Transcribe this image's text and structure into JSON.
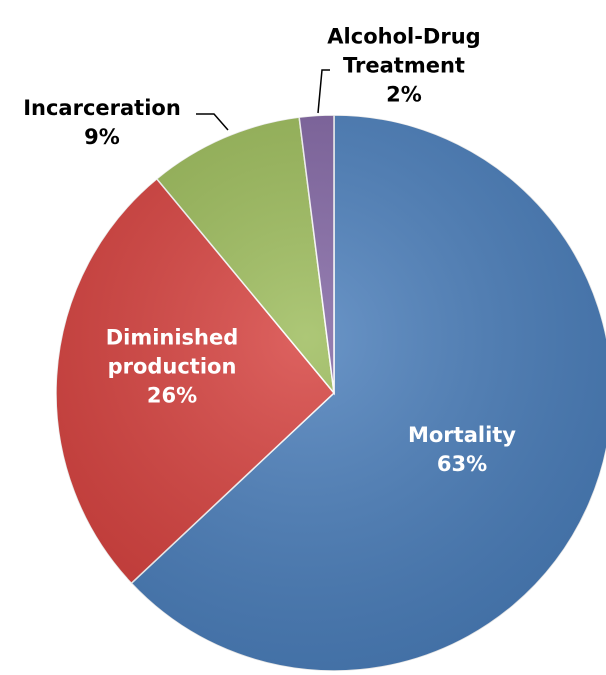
{
  "chart_data": {
    "type": "pie",
    "categories": [
      "Mortality",
      "Diminished production",
      "Incarceration",
      "Alcohol-Drug Treatment"
    ],
    "values": [
      63,
      26,
      9,
      2
    ],
    "value_labels": [
      "63%",
      "26%",
      "9%",
      "2%"
    ],
    "colors": [
      "#4a7ebb",
      "#d6403d",
      "#9bbb59",
      "#8064a2"
    ]
  }
}
